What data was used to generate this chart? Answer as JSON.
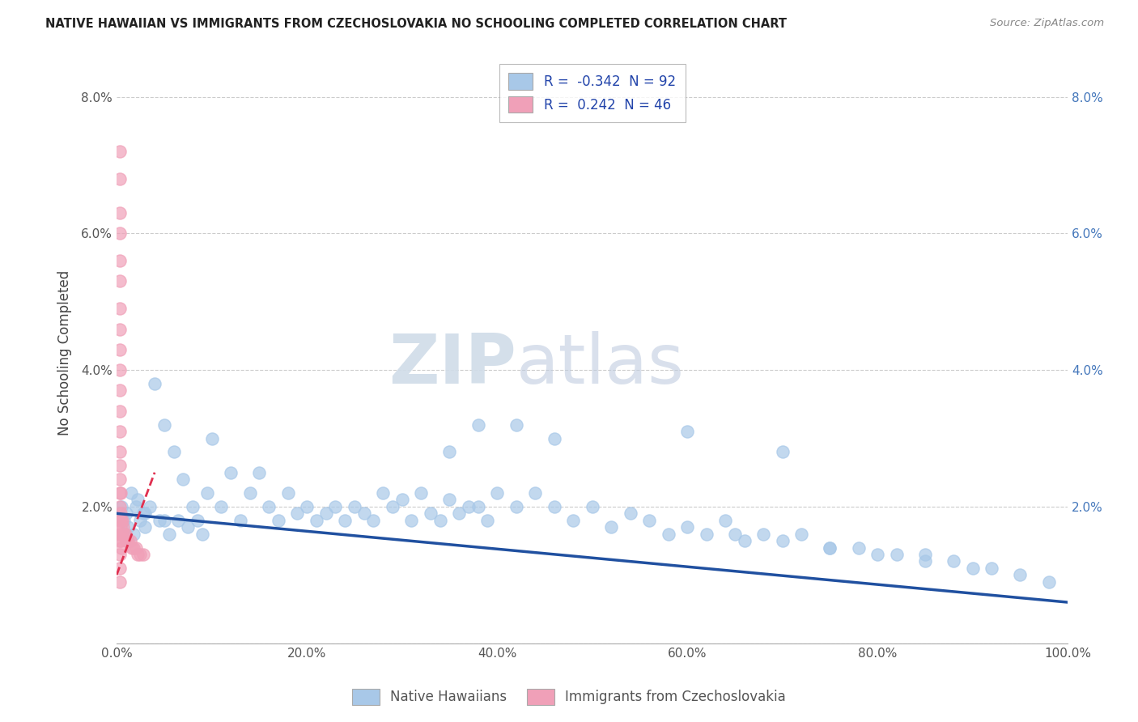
{
  "title": "NATIVE HAWAIIAN VS IMMIGRANTS FROM CZECHOSLOVAKIA NO SCHOOLING COMPLETED CORRELATION CHART",
  "source": "Source: ZipAtlas.com",
  "ylabel": "No Schooling Completed",
  "r_blue": -0.342,
  "n_blue": 92,
  "r_pink": 0.242,
  "n_pink": 46,
  "xlim": [
    0.0,
    1.0
  ],
  "ylim": [
    0.0,
    0.085
  ],
  "xticks": [
    0.0,
    0.2,
    0.4,
    0.6,
    0.8,
    1.0
  ],
  "yticks": [
    0.0,
    0.02,
    0.04,
    0.06,
    0.08
  ],
  "xticklabels": [
    "0.0%",
    "20.0%",
    "40.0%",
    "60.0%",
    "80.0%",
    "100.0%"
  ],
  "yticklabels": [
    "",
    "2.0%",
    "4.0%",
    "6.0%",
    "8.0%"
  ],
  "watermark_zip": "ZIP",
  "watermark_atlas": "atlas",
  "blue_color": "#a8c8e8",
  "pink_color": "#f0a0b8",
  "blue_line_color": "#2050a0",
  "pink_line_color": "#e03050",
  "legend_label_blue": "Native Hawaiians",
  "legend_label_pink": "Immigrants from Czechoslovakia",
  "blue_trend_x": [
    0.0,
    1.0
  ],
  "blue_trend_y": [
    0.019,
    0.006
  ],
  "pink_trend_x": [
    0.0,
    0.04
  ],
  "pink_trend_y": [
    0.01,
    0.025
  ],
  "blue_x": [
    0.005,
    0.008,
    0.01,
    0.012,
    0.015,
    0.018,
    0.02,
    0.022,
    0.025,
    0.028,
    0.03,
    0.035,
    0.04,
    0.045,
    0.05,
    0.055,
    0.06,
    0.065,
    0.07,
    0.075,
    0.08,
    0.085,
    0.09,
    0.095,
    0.1,
    0.11,
    0.12,
    0.13,
    0.14,
    0.15,
    0.16,
    0.17,
    0.18,
    0.19,
    0.2,
    0.21,
    0.22,
    0.23,
    0.24,
    0.25,
    0.26,
    0.27,
    0.28,
    0.29,
    0.3,
    0.31,
    0.32,
    0.33,
    0.34,
    0.35,
    0.36,
    0.37,
    0.38,
    0.39,
    0.4,
    0.42,
    0.44,
    0.46,
    0.48,
    0.5,
    0.52,
    0.54,
    0.56,
    0.58,
    0.6,
    0.62,
    0.64,
    0.66,
    0.68,
    0.7,
    0.72,
    0.75,
    0.78,
    0.82,
    0.85,
    0.88,
    0.9,
    0.92,
    0.95,
    0.98,
    0.35,
    0.38,
    0.42,
    0.46,
    0.6,
    0.65,
    0.7,
    0.75,
    0.8,
    0.85,
    0.03,
    0.05
  ],
  "blue_y": [
    0.02,
    0.018,
    0.019,
    0.017,
    0.022,
    0.016,
    0.02,
    0.021,
    0.018,
    0.019,
    0.017,
    0.02,
    0.038,
    0.018,
    0.032,
    0.016,
    0.028,
    0.018,
    0.024,
    0.017,
    0.02,
    0.018,
    0.016,
    0.022,
    0.03,
    0.02,
    0.025,
    0.018,
    0.022,
    0.025,
    0.02,
    0.018,
    0.022,
    0.019,
    0.02,
    0.018,
    0.019,
    0.02,
    0.018,
    0.02,
    0.019,
    0.018,
    0.022,
    0.02,
    0.021,
    0.018,
    0.022,
    0.019,
    0.018,
    0.021,
    0.019,
    0.02,
    0.02,
    0.018,
    0.022,
    0.02,
    0.022,
    0.02,
    0.018,
    0.02,
    0.017,
    0.019,
    0.018,
    0.016,
    0.017,
    0.016,
    0.018,
    0.015,
    0.016,
    0.015,
    0.016,
    0.014,
    0.014,
    0.013,
    0.013,
    0.012,
    0.011,
    0.011,
    0.01,
    0.009,
    0.028,
    0.032,
    0.032,
    0.03,
    0.031,
    0.016,
    0.028,
    0.014,
    0.013,
    0.012,
    0.019,
    0.018
  ],
  "pink_x": [
    0.003,
    0.003,
    0.003,
    0.003,
    0.003,
    0.003,
    0.003,
    0.003,
    0.003,
    0.003,
    0.003,
    0.003,
    0.003,
    0.003,
    0.003,
    0.003,
    0.003,
    0.003,
    0.003,
    0.003,
    0.003,
    0.003,
    0.004,
    0.004,
    0.004,
    0.004,
    0.005,
    0.005,
    0.005,
    0.006,
    0.006,
    0.007,
    0.008,
    0.009,
    0.01,
    0.011,
    0.012,
    0.014,
    0.016,
    0.018,
    0.02,
    0.022,
    0.025,
    0.028,
    0.003,
    0.003
  ],
  "pink_y": [
    0.072,
    0.068,
    0.063,
    0.06,
    0.056,
    0.053,
    0.049,
    0.046,
    0.043,
    0.04,
    0.037,
    0.034,
    0.031,
    0.028,
    0.026,
    0.024,
    0.022,
    0.02,
    0.018,
    0.016,
    0.015,
    0.013,
    0.022,
    0.019,
    0.017,
    0.015,
    0.018,
    0.016,
    0.014,
    0.018,
    0.016,
    0.017,
    0.016,
    0.016,
    0.015,
    0.015,
    0.015,
    0.015,
    0.014,
    0.014,
    0.014,
    0.013,
    0.013,
    0.013,
    0.011,
    0.009
  ]
}
